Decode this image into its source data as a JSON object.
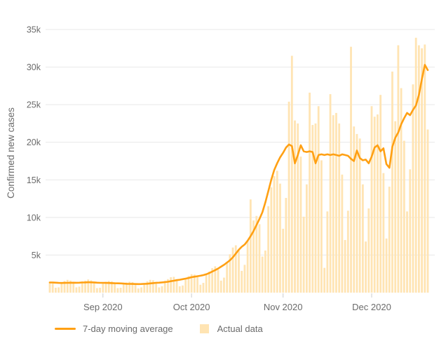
{
  "chart_data": {
    "type": "bar",
    "title": "",
    "xlabel": "",
    "ylabel": "Confirmed new cases",
    "ylim": [
      0,
      37500
    ],
    "grid": true,
    "legend_position": "bottom",
    "y_ticks": [
      {
        "value": 5000,
        "label": "5k"
      },
      {
        "value": 10000,
        "label": "10k"
      },
      {
        "value": 15000,
        "label": "15k"
      },
      {
        "value": 20000,
        "label": "20k"
      },
      {
        "value": 25000,
        "label": "25k"
      },
      {
        "value": 30000,
        "label": "30k"
      },
      {
        "value": 35000,
        "label": "35k"
      }
    ],
    "x_ticks": [
      {
        "index": 18,
        "label": "Sep 2020"
      },
      {
        "index": 48,
        "label": "Oct 2020"
      },
      {
        "index": 79,
        "label": "Nov 2020"
      },
      {
        "index": 109,
        "label": "Dec 2020"
      }
    ],
    "x_start_date": "2020-08-14",
    "x_frequency": "daily",
    "series": [
      {
        "name": "7-day moving average",
        "type": "line",
        "color": "#ffa013",
        "values": [
          1350,
          1340,
          1330,
          1300,
          1290,
          1300,
          1310,
          1320,
          1330,
          1320,
          1330,
          1350,
          1360,
          1380,
          1370,
          1360,
          1330,
          1310,
          1310,
          1300,
          1290,
          1270,
          1250,
          1240,
          1230,
          1200,
          1180,
          1170,
          1160,
          1150,
          1140,
          1150,
          1170,
          1190,
          1230,
          1270,
          1310,
          1330,
          1360,
          1400,
          1450,
          1520,
          1590,
          1660,
          1720,
          1790,
          1870,
          1950,
          2050,
          2120,
          2180,
          2250,
          2330,
          2450,
          2600,
          2800,
          3000,
          3200,
          3450,
          3700,
          4000,
          4300,
          4700,
          5200,
          5700,
          6100,
          6400,
          6900,
          7500,
          8200,
          9000,
          9800,
          10700,
          12000,
          13500,
          15000,
          16300,
          17200,
          18000,
          18600,
          19300,
          19700,
          19500,
          17200,
          18300,
          19600,
          18800,
          18700,
          18800,
          18700,
          17200,
          18300,
          18400,
          18300,
          18400,
          18300,
          18400,
          18300,
          18200,
          18400,
          18300,
          18200,
          17800,
          17500,
          18900,
          17900,
          17600,
          17700,
          17200,
          18100,
          19300,
          19600,
          18800,
          19200,
          17100,
          16600,
          19400,
          20600,
          21300,
          22400,
          23200,
          23900,
          23600,
          24300,
          24900,
          26300,
          28400,
          30300,
          29600
        ]
      },
      {
        "name": "Actual data",
        "type": "bar",
        "color": "#ffe4b3",
        "values": [
          1450,
          1200,
          650,
          700,
          1350,
          1550,
          1700,
          1600,
          1400,
          700,
          800,
          1500,
          1600,
          1750,
          1650,
          1450,
          600,
          650,
          1300,
          1450,
          1550,
          1500,
          1250,
          600,
          650,
          1200,
          1350,
          1450,
          1400,
          1150,
          550,
          700,
          1300,
          1500,
          1700,
          1650,
          1450,
          700,
          850,
          1600,
          1800,
          2050,
          2100,
          1800,
          850,
          950,
          1900,
          2200,
          2450,
          2400,
          2050,
          1050,
          1300,
          2450,
          2800,
          3250,
          3500,
          3050,
          1600,
          2000,
          4100,
          5100,
          6000,
          6300,
          5600,
          2900,
          3700,
          6900,
          12400,
          9600,
          10200,
          9100,
          4800,
          5600,
          11500,
          14000,
          15500,
          16200,
          14500,
          8500,
          12600,
          25400,
          31500,
          22900,
          22500,
          18100,
          10100,
          14400,
          26600,
          22300,
          22500,
          24800,
          17600,
          3300,
          10800,
          26400,
          23600,
          23900,
          22500,
          15700,
          7000,
          10900,
          32700,
          22100,
          21100,
          20500,
          14400,
          6800,
          11200,
          24800,
          23400,
          23700,
          26300,
          15900,
          7200,
          14100,
          29400,
          22800,
          32900,
          27200,
          20200,
          10800,
          16400,
          27700,
          33900,
          32900,
          32500,
          33000,
          21700
        ]
      }
    ]
  },
  "style": {
    "grid_color": "#e8e8e8",
    "tick_mark_color": "#cccccc",
    "axis_text_color": "#6b6b6b",
    "background_color": "#ffffff"
  }
}
